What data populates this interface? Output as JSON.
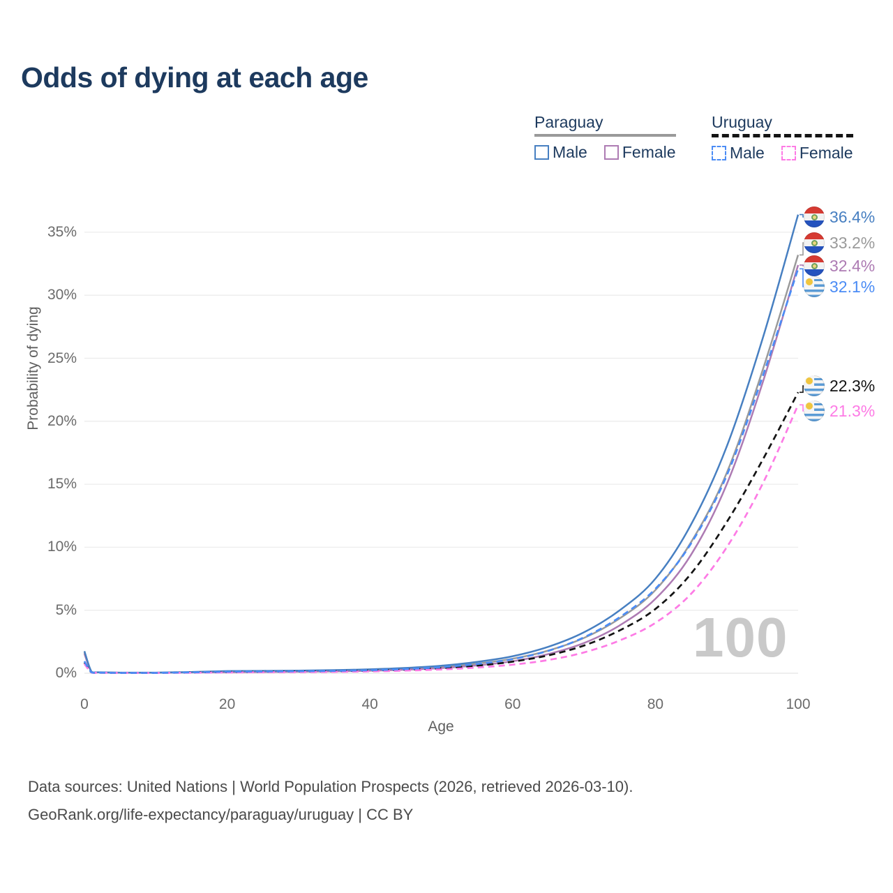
{
  "title": "Odds of dying at each age",
  "watermark_age": "100",
  "legend": {
    "groups": [
      {
        "country": "Paraguay",
        "line_style": "solid",
        "underline_color": "#9a9a9a",
        "items": [
          {
            "label": "Male",
            "color": "#477fc1"
          },
          {
            "label": "Female",
            "color": "#ad7bb3"
          }
        ]
      },
      {
        "country": "Uruguay",
        "line_style": "dashed",
        "underline_color": "#141414",
        "items": [
          {
            "label": "Male",
            "color": "#4b8cf5"
          },
          {
            "label": "Female",
            "color": "#fd7be5"
          }
        ]
      }
    ]
  },
  "footer": {
    "line1": "Data sources: United Nations | World Population Prospects (2026, retrieved 2026-03-10).",
    "line2": "GeoRank.org/life-expectancy/paraguay/uruguay | CC BY"
  },
  "chart_data": {
    "type": "line",
    "title": "Odds of dying at each age",
    "xlabel": "Age",
    "ylabel": "Probability of dying",
    "xlim": [
      0,
      100
    ],
    "ylim_percent": [
      0,
      37
    ],
    "grid": "horizontal",
    "legend_position": "top-right",
    "x_ticks": [
      {
        "value": 0,
        "label": "0"
      },
      {
        "value": 20,
        "label": "20"
      },
      {
        "value": 40,
        "label": "40"
      },
      {
        "value": 60,
        "label": "60"
      },
      {
        "value": 80,
        "label": "80"
      },
      {
        "value": 100,
        "label": "100"
      }
    ],
    "y_ticks": [
      {
        "value": 0,
        "label": "0%"
      },
      {
        "value": 5,
        "label": "5%"
      },
      {
        "value": 10,
        "label": "10%"
      },
      {
        "value": 15,
        "label": "15%"
      },
      {
        "value": 20,
        "label": "20%"
      },
      {
        "value": 25,
        "label": "25%"
      },
      {
        "value": 30,
        "label": "30%"
      },
      {
        "value": 35,
        "label": "35%"
      }
    ],
    "ages": [
      0,
      1,
      2,
      5,
      10,
      15,
      20,
      25,
      30,
      35,
      40,
      45,
      50,
      55,
      60,
      65,
      70,
      75,
      80,
      85,
      90,
      95,
      100
    ],
    "series": [
      {
        "name": "Paraguay Both sexes",
        "country": "Paraguay",
        "flag": "paraguay",
        "style": "solid",
        "color": "#9a9a9a",
        "end_label": "33.2%",
        "values_percent": [
          1.65,
          0.11,
          0.07,
          0.045,
          0.045,
          0.08,
          0.13,
          0.15,
          0.17,
          0.2,
          0.26,
          0.35,
          0.5,
          0.76,
          1.15,
          1.8,
          2.8,
          4.35,
          6.6,
          10.4,
          15.9,
          24.0,
          33.2
        ]
      },
      {
        "name": "Paraguay Female",
        "country": "Paraguay",
        "flag": "paraguay",
        "style": "solid",
        "color": "#ad7bb3",
        "end_label": "32.4%",
        "values_percent": [
          1.55,
          0.1,
          0.065,
          0.04,
          0.04,
          0.06,
          0.08,
          0.1,
          0.12,
          0.15,
          0.2,
          0.28,
          0.41,
          0.62,
          0.95,
          1.52,
          2.4,
          3.8,
          5.9,
          9.4,
          15.0,
          23.0,
          32.4
        ]
      },
      {
        "name": "Paraguay Male",
        "country": "Paraguay",
        "flag": "paraguay",
        "style": "solid",
        "color": "#477fc1",
        "end_label": "36.4%",
        "values_percent": [
          1.75,
          0.12,
          0.08,
          0.05,
          0.05,
          0.1,
          0.17,
          0.19,
          0.21,
          0.25,
          0.31,
          0.42,
          0.6,
          0.9,
          1.35,
          2.1,
          3.25,
          5.0,
          7.5,
          11.8,
          18.0,
          26.5,
          36.4
        ]
      },
      {
        "name": "Uruguay Both sexes",
        "country": "Uruguay",
        "flag": "uruguay",
        "style": "dashed",
        "color": "#141414",
        "end_label": "22.3%",
        "values_percent": [
          0.85,
          0.06,
          0.045,
          0.028,
          0.028,
          0.06,
          0.1,
          0.12,
          0.14,
          0.16,
          0.21,
          0.28,
          0.4,
          0.6,
          0.92,
          1.42,
          2.2,
          3.4,
          5.1,
          7.9,
          12.0,
          16.9,
          22.3
        ]
      },
      {
        "name": "Uruguay Female",
        "country": "Uruguay",
        "flag": "uruguay",
        "style": "dashed",
        "color": "#fd7be5",
        "end_label": "21.3%",
        "values_percent": [
          0.75,
          0.05,
          0.04,
          0.025,
          0.025,
          0.04,
          0.06,
          0.08,
          0.09,
          0.11,
          0.15,
          0.21,
          0.3,
          0.45,
          0.68,
          1.05,
          1.65,
          2.6,
          4.0,
          6.3,
          10.0,
          15.0,
          21.3
        ]
      },
      {
        "name": "Uruguay Male",
        "country": "Uruguay",
        "flag": "uruguay",
        "style": "dashed",
        "color": "#4b8cf5",
        "end_label": "32.1%",
        "values_percent": [
          0.95,
          0.07,
          0.05,
          0.03,
          0.03,
          0.07,
          0.12,
          0.14,
          0.16,
          0.19,
          0.24,
          0.33,
          0.48,
          0.73,
          1.12,
          1.78,
          2.85,
          4.45,
          6.7,
          10.3,
          15.7,
          23.5,
          32.1
        ]
      }
    ]
  }
}
